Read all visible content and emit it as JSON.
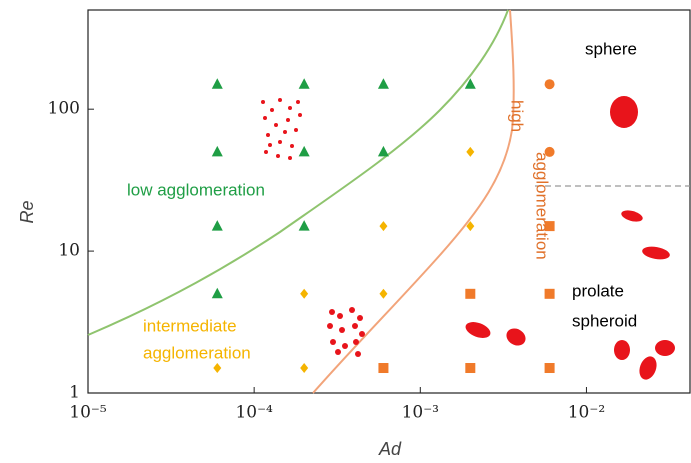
{
  "chart_data": {
    "type": "scatter",
    "x_label": "Ad",
    "y_label": "Re",
    "xscale": "log",
    "yscale": "log",
    "xlim": [
      1e-05,
      0.042
    ],
    "ylim": [
      1,
      500
    ],
    "xticks": [
      {
        "value": 1e-05,
        "label": "10⁻⁵"
      },
      {
        "value": 0.0001,
        "label": "10⁻⁴"
      },
      {
        "value": 0.001,
        "label": "10⁻³"
      },
      {
        "value": 0.01,
        "label": "10⁻²"
      }
    ],
    "yticks": [
      1,
      10,
      100
    ],
    "series": [
      {
        "marker": "triangle",
        "color": "#1f9e45",
        "x": [
          6e-05,
          0.0002,
          0.0006,
          0.002,
          6e-05,
          0.0002,
          0.0006,
          6e-05,
          0.0002,
          6e-05
        ],
        "values": [
          150,
          150,
          150,
          150,
          50,
          50,
          50,
          15,
          15,
          5
        ]
      },
      {
        "marker": "diamond",
        "color": "#f5b400",
        "x": [
          0.002,
          0.0006,
          0.002,
          0.0002,
          0.0006,
          6e-05,
          0.0002
        ],
        "values": [
          50,
          15,
          15,
          5,
          5,
          1.5,
          1.5
        ]
      },
      {
        "marker": "circle",
        "color": "#f07a2a",
        "x": [
          0.006,
          0.006
        ],
        "values": [
          150,
          50
        ]
      },
      {
        "marker": "square",
        "color": "#f07a2a",
        "x": [
          0.006,
          0.002,
          0.006,
          0.0006,
          0.002,
          0.006
        ],
        "values": [
          15,
          5,
          5,
          1.5,
          1.5,
          1.5
        ]
      }
    ],
    "annotations": [
      "low agglomeration",
      "intermediate",
      "agglomeration",
      "high",
      "agglomeration",
      "sphere",
      "prolate",
      "spheroid"
    ]
  }
}
